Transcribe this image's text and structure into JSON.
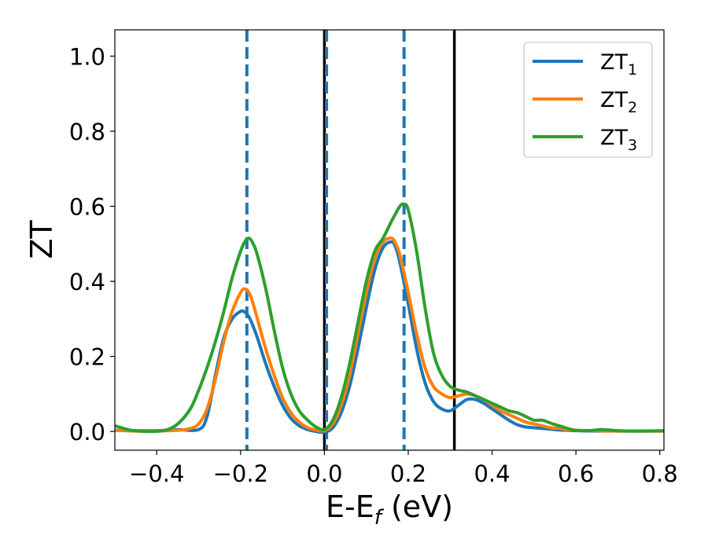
{
  "chart_data": {
    "type": "line",
    "xlabel": {
      "main": "E-E",
      "sub": "f",
      "unit": " (eV)"
    },
    "ylabel": "ZT",
    "xlim": [
      -0.5,
      0.81
    ],
    "ylim": [
      -0.05,
      1.07
    ],
    "xticks": [
      -0.4,
      -0.2,
      0.0,
      0.2,
      0.4,
      0.6,
      0.8
    ],
    "xtick_labels": [
      "−0.4",
      "−0.2",
      "0.0",
      "0.2",
      "0.4",
      "0.6",
      "0.8"
    ],
    "yticks": [
      0.0,
      0.2,
      0.4,
      0.6,
      0.8,
      1.0
    ],
    "ytick_labels": [
      "0.0",
      "0.2",
      "0.4",
      "0.6",
      "0.8",
      "1.0"
    ],
    "grid": false,
    "legend_position": "top-right",
    "vertical_lines": [
      {
        "x": -0.185,
        "style": "dashed",
        "color": "#1f77b4"
      },
      {
        "x": 0.0,
        "style": "solid",
        "color": "#000000"
      },
      {
        "x": 0.005,
        "style": "dashed",
        "color": "#1f77b4"
      },
      {
        "x": 0.19,
        "style": "dashed",
        "color": "#1f77b4"
      },
      {
        "x": 0.31,
        "style": "solid",
        "color": "#000000"
      }
    ],
    "series": [
      {
        "name": "ZT",
        "name_sub": "1",
        "color": "#1f77b4",
        "x": [
          -0.5,
          -0.45,
          -0.4,
          -0.35,
          -0.3,
          -0.28,
          -0.26,
          -0.24,
          -0.22,
          -0.2,
          -0.19,
          -0.18,
          -0.17,
          -0.16,
          -0.14,
          -0.12,
          -0.1,
          -0.08,
          -0.06,
          -0.04,
          -0.02,
          0.0,
          0.02,
          0.04,
          0.06,
          0.08,
          0.1,
          0.12,
          0.14,
          0.16,
          0.17,
          0.18,
          0.2,
          0.22,
          0.24,
          0.26,
          0.28,
          0.3,
          0.32,
          0.34,
          0.36,
          0.38,
          0.4,
          0.42,
          0.44,
          0.46,
          0.48,
          0.5,
          0.52,
          0.54,
          0.56,
          0.58,
          0.6,
          0.65,
          0.7,
          0.75,
          0.81
        ],
        "y": [
          0.003,
          0.002,
          0.002,
          0.005,
          0.005,
          0.04,
          0.15,
          0.25,
          0.3,
          0.32,
          0.318,
          0.305,
          0.28,
          0.25,
          0.18,
          0.12,
          0.07,
          0.035,
          0.015,
          0.005,
          0.0,
          -0.002,
          0.01,
          0.05,
          0.12,
          0.22,
          0.33,
          0.43,
          0.49,
          0.505,
          0.49,
          0.45,
          0.34,
          0.22,
          0.13,
          0.08,
          0.06,
          0.055,
          0.07,
          0.085,
          0.085,
          0.075,
          0.06,
          0.045,
          0.03,
          0.018,
          0.012,
          0.01,
          0.008,
          0.006,
          0.004,
          0.003,
          0.002,
          0.001,
          0.001,
          0.001,
          0.001
        ]
      },
      {
        "name": "ZT",
        "name_sub": "2",
        "color": "#ff7f0e",
        "x": [
          -0.5,
          -0.45,
          -0.4,
          -0.35,
          -0.32,
          -0.3,
          -0.28,
          -0.26,
          -0.24,
          -0.22,
          -0.2,
          -0.19,
          -0.18,
          -0.17,
          -0.16,
          -0.14,
          -0.12,
          -0.1,
          -0.08,
          -0.06,
          -0.04,
          -0.02,
          0.0,
          0.02,
          0.04,
          0.06,
          0.08,
          0.1,
          0.12,
          0.14,
          0.16,
          0.17,
          0.18,
          0.2,
          0.22,
          0.24,
          0.26,
          0.28,
          0.3,
          0.32,
          0.34,
          0.36,
          0.38,
          0.4,
          0.42,
          0.44,
          0.46,
          0.48,
          0.5,
          0.52,
          0.54,
          0.56,
          0.58,
          0.6,
          0.65,
          0.7,
          0.75,
          0.81
        ],
        "y": [
          0.003,
          0.001,
          0.001,
          0.003,
          0.008,
          0.02,
          0.06,
          0.14,
          0.24,
          0.32,
          0.37,
          0.38,
          0.37,
          0.34,
          0.3,
          0.22,
          0.15,
          0.09,
          0.05,
          0.025,
          0.01,
          0.004,
          0.002,
          0.02,
          0.07,
          0.15,
          0.26,
          0.37,
          0.46,
          0.505,
          0.515,
          0.5,
          0.47,
          0.37,
          0.26,
          0.17,
          0.12,
          0.1,
          0.09,
          0.095,
          0.1,
          0.095,
          0.085,
          0.07,
          0.055,
          0.045,
          0.035,
          0.025,
          0.02,
          0.015,
          0.01,
          0.008,
          0.005,
          0.003,
          0.002,
          0.001,
          0.001,
          0.001
        ]
      },
      {
        "name": "ZT",
        "name_sub": "3",
        "color": "#2ca02c",
        "x": [
          -0.5,
          -0.46,
          -0.42,
          -0.38,
          -0.35,
          -0.32,
          -0.3,
          -0.28,
          -0.26,
          -0.24,
          -0.22,
          -0.2,
          -0.19,
          -0.18,
          -0.17,
          -0.16,
          -0.14,
          -0.12,
          -0.1,
          -0.08,
          -0.06,
          -0.04,
          -0.02,
          0.0,
          0.02,
          0.04,
          0.06,
          0.08,
          0.1,
          0.12,
          0.14,
          0.16,
          0.18,
          0.19,
          0.2,
          0.22,
          0.24,
          0.26,
          0.28,
          0.3,
          0.32,
          0.34,
          0.36,
          0.38,
          0.4,
          0.42,
          0.44,
          0.46,
          0.48,
          0.5,
          0.52,
          0.54,
          0.56,
          0.58,
          0.6,
          0.63,
          0.66,
          0.7,
          0.75,
          0.81
        ],
        "y": [
          0.015,
          0.003,
          0.0,
          0.003,
          0.02,
          0.06,
          0.11,
          0.17,
          0.24,
          0.32,
          0.41,
          0.48,
          0.505,
          0.515,
          0.5,
          0.47,
          0.38,
          0.27,
          0.17,
          0.1,
          0.055,
          0.03,
          0.012,
          0.005,
          0.03,
          0.09,
          0.18,
          0.29,
          0.4,
          0.48,
          0.515,
          0.56,
          0.6,
          0.605,
          0.59,
          0.48,
          0.33,
          0.21,
          0.15,
          0.12,
          0.11,
          0.105,
          0.095,
          0.085,
          0.075,
          0.065,
          0.055,
          0.05,
          0.04,
          0.03,
          0.03,
          0.022,
          0.015,
          0.008,
          0.003,
          0.002,
          0.005,
          0.002,
          0.001,
          0.002
        ]
      }
    ]
  }
}
